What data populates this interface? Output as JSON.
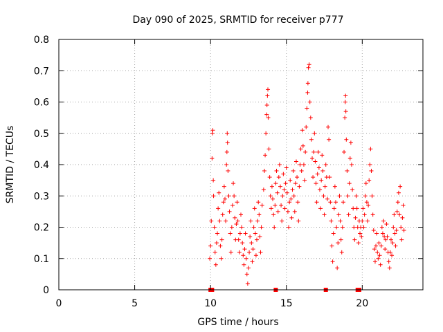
{
  "chart_data": {
    "type": "scatter",
    "title": "Day 090 of 2025, SRMTID for receiver p777",
    "xlabel": "GPS time / hours",
    "ylabel": "SRMTID / TECUs",
    "xlim": [
      0,
      24
    ],
    "ylim": [
      0,
      0.8
    ],
    "xticks": [
      0,
      5,
      10,
      15,
      20
    ],
    "xtick_labels": [
      "0",
      "5",
      "10",
      "15",
      "20"
    ],
    "yticks": [
      0,
      0.1,
      0.2,
      0.3,
      0.4,
      0.5,
      0.6,
      0.7,
      0.8
    ],
    "ytick_labels": [
      "0",
      "0.1",
      "0.2",
      "0.3",
      "0.4",
      "0.5",
      "0.6",
      "0.7",
      "0.8"
    ],
    "grid": true,
    "marker": "+",
    "color": "#ff0000",
    "series": [
      {
        "name": "SRMTID",
        "points": [
          [
            9.95,
            0.1
          ],
          [
            10.0,
            0.14
          ],
          [
            10.05,
            0.22
          ],
          [
            10.1,
            0.42
          ],
          [
            10.12,
            0.5
          ],
          [
            10.15,
            0.51
          ],
          [
            10.18,
            0.35
          ],
          [
            10.2,
            0.3
          ],
          [
            10.25,
            0.2
          ],
          [
            10.3,
            0.12
          ],
          [
            10.35,
            0.08
          ],
          [
            10.4,
            0.15
          ],
          [
            10.45,
            0.18
          ],
          [
            10.5,
            0.26
          ],
          [
            10.55,
            0.31
          ],
          [
            10.6,
            0.22
          ],
          [
            10.65,
            0.14
          ],
          [
            10.7,
            0.1
          ],
          [
            10.75,
            0.16
          ],
          [
            10.8,
            0.24
          ],
          [
            10.85,
            0.28
          ],
          [
            10.9,
            0.33
          ],
          [
            10.95,
            0.29
          ],
          [
            11.0,
            0.22
          ],
          [
            11.05,
            0.4
          ],
          [
            11.08,
            0.44
          ],
          [
            11.1,
            0.5
          ],
          [
            11.12,
            0.47
          ],
          [
            11.15,
            0.38
          ],
          [
            11.2,
            0.3
          ],
          [
            11.25,
            0.25
          ],
          [
            11.3,
            0.18
          ],
          [
            11.35,
            0.12
          ],
          [
            11.4,
            0.2
          ],
          [
            11.45,
            0.27
          ],
          [
            11.5,
            0.34
          ],
          [
            11.55,
            0.3
          ],
          [
            11.6,
            0.23
          ],
          [
            11.65,
            0.16
          ],
          [
            11.7,
            0.21
          ],
          [
            11.75,
            0.28
          ],
          [
            11.8,
            0.22
          ],
          [
            11.85,
            0.16
          ],
          [
            11.9,
            0.12
          ],
          [
            11.95,
            0.18
          ],
          [
            12.0,
            0.24
          ],
          [
            12.05,
            0.2
          ],
          [
            12.1,
            0.15
          ],
          [
            12.15,
            0.11
          ],
          [
            12.2,
            0.08
          ],
          [
            12.25,
            0.13
          ],
          [
            12.3,
            0.18
          ],
          [
            12.35,
            0.1
          ],
          [
            12.4,
            0.05
          ],
          [
            12.45,
            0.02
          ],
          [
            12.5,
            0.07
          ],
          [
            12.55,
            0.12
          ],
          [
            12.6,
            0.17
          ],
          [
            12.65,
            0.22
          ],
          [
            12.7,
            0.15
          ],
          [
            12.75,
            0.09
          ],
          [
            12.8,
            0.13
          ],
          [
            12.85,
            0.2
          ],
          [
            12.9,
            0.26
          ],
          [
            12.95,
            0.18
          ],
          [
            13.0,
            0.11
          ],
          [
            13.05,
            0.16
          ],
          [
            13.1,
            0.22
          ],
          [
            13.15,
            0.28
          ],
          [
            13.2,
            0.24
          ],
          [
            13.25,
            0.17
          ],
          [
            13.3,
            0.12
          ],
          [
            13.35,
            0.2
          ],
          [
            13.4,
            0.27
          ],
          [
            13.5,
            0.32
          ],
          [
            13.55,
            0.38
          ],
          [
            13.6,
            0.43
          ],
          [
            13.65,
            0.5
          ],
          [
            13.7,
            0.56
          ],
          [
            13.72,
            0.59
          ],
          [
            13.75,
            0.62
          ],
          [
            13.78,
            0.64
          ],
          [
            13.8,
            0.55
          ],
          [
            13.85,
            0.45
          ],
          [
            13.9,
            0.36
          ],
          [
            13.95,
            0.3
          ],
          [
            14.0,
            0.26
          ],
          [
            14.05,
            0.33
          ],
          [
            14.1,
            0.29
          ],
          [
            14.15,
            0.24
          ],
          [
            14.2,
            0.2
          ],
          [
            14.25,
            0.27
          ],
          [
            14.3,
            0.34
          ],
          [
            14.35,
            0.38
          ],
          [
            14.4,
            0.31
          ],
          [
            14.45,
            0.25
          ],
          [
            14.5,
            0.36
          ],
          [
            14.55,
            0.4
          ],
          [
            14.6,
            0.33
          ],
          [
            14.65,
            0.27
          ],
          [
            14.7,
            0.22
          ],
          [
            14.75,
            0.3
          ],
          [
            14.8,
            0.37
          ],
          [
            14.85,
            0.32
          ],
          [
            14.9,
            0.26
          ],
          [
            14.95,
            0.34
          ],
          [
            15.0,
            0.39
          ],
          [
            15.05,
            0.31
          ],
          [
            15.1,
            0.25
          ],
          [
            15.15,
            0.2
          ],
          [
            15.2,
            0.28
          ],
          [
            15.25,
            0.35
          ],
          [
            15.3,
            0.29
          ],
          [
            15.35,
            0.23
          ],
          [
            15.4,
            0.32
          ],
          [
            15.45,
            0.38
          ],
          [
            15.5,
            0.3
          ],
          [
            15.55,
            0.25
          ],
          [
            15.6,
            0.34
          ],
          [
            15.65,
            0.41
          ],
          [
            15.7,
            0.36
          ],
          [
            15.75,
            0.28
          ],
          [
            15.8,
            0.22
          ],
          [
            15.85,
            0.33
          ],
          [
            15.9,
            0.4
          ],
          [
            15.95,
            0.45
          ],
          [
            16.0,
            0.38
          ],
          [
            16.05,
            0.51
          ],
          [
            16.1,
            0.46
          ],
          [
            16.15,
            0.4
          ],
          [
            16.2,
            0.35
          ],
          [
            16.25,
            0.44
          ],
          [
            16.3,
            0.52
          ],
          [
            16.35,
            0.58
          ],
          [
            16.4,
            0.63
          ],
          [
            16.42,
            0.66
          ],
          [
            16.45,
            0.71
          ],
          [
            16.5,
            0.72
          ],
          [
            16.55,
            0.6
          ],
          [
            16.6,
            0.55
          ],
          [
            16.65,
            0.48
          ],
          [
            16.7,
            0.42
          ],
          [
            16.75,
            0.36
          ],
          [
            16.8,
            0.44
          ],
          [
            16.85,
            0.5
          ],
          [
            16.9,
            0.41
          ],
          [
            16.95,
            0.34
          ],
          [
            17.0,
            0.28
          ],
          [
            17.05,
            0.37
          ],
          [
            17.1,
            0.44
          ],
          [
            17.15,
            0.39
          ],
          [
            17.2,
            0.32
          ],
          [
            17.25,
            0.26
          ],
          [
            17.3,
            0.35
          ],
          [
            17.35,
            0.43
          ],
          [
            17.4,
            0.38
          ],
          [
            17.45,
            0.3
          ],
          [
            17.5,
            0.24
          ],
          [
            17.55,
            0.33
          ],
          [
            17.6,
            0.4
          ],
          [
            17.65,
            0.36
          ],
          [
            17.7,
            0.29
          ],
          [
            17.75,
            0.52
          ],
          [
            17.8,
            0.48
          ],
          [
            17.85,
            0.36
          ],
          [
            17.9,
            0.28
          ],
          [
            17.95,
            0.22
          ],
          [
            18.0,
            0.14
          ],
          [
            18.05,
            0.09
          ],
          [
            18.1,
            0.18
          ],
          [
            18.15,
            0.26
          ],
          [
            18.2,
            0.33
          ],
          [
            18.25,
            0.28
          ],
          [
            18.3,
            0.2
          ],
          [
            18.35,
            0.07
          ],
          [
            18.4,
            0.15
          ],
          [
            18.45,
            0.24
          ],
          [
            18.5,
            0.3
          ],
          [
            18.55,
            0.22
          ],
          [
            18.6,
            0.16
          ],
          [
            18.65,
            0.12
          ],
          [
            18.7,
            0.2
          ],
          [
            18.75,
            0.28
          ],
          [
            18.8,
            0.44
          ],
          [
            18.85,
            0.55
          ],
          [
            18.88,
            0.6
          ],
          [
            18.9,
            0.62
          ],
          [
            18.92,
            0.57
          ],
          [
            18.95,
            0.48
          ],
          [
            19.0,
            0.38
          ],
          [
            19.05,
            0.3
          ],
          [
            19.1,
            0.24
          ],
          [
            19.15,
            0.34
          ],
          [
            19.2,
            0.42
          ],
          [
            19.25,
            0.47
          ],
          [
            19.3,
            0.4
          ],
          [
            19.35,
            0.32
          ],
          [
            19.4,
            0.26
          ],
          [
            19.45,
            0.2
          ],
          [
            19.5,
            0.16
          ],
          [
            19.55,
            0.23
          ],
          [
            19.6,
            0.3
          ],
          [
            19.65,
            0.26
          ],
          [
            19.7,
            0.2
          ],
          [
            19.75,
            0.15
          ],
          [
            19.8,
            0.22
          ],
          [
            19.85,
            0.18
          ],
          [
            19.9,
            0.2
          ],
          [
            19.95,
            0.17
          ],
          [
            20.0,
            0.22
          ],
          [
            20.05,
            0.26
          ],
          [
            20.1,
            0.2
          ],
          [
            20.15,
            0.24
          ],
          [
            20.2,
            0.3
          ],
          [
            20.25,
            0.34
          ],
          [
            20.3,
            0.28
          ],
          [
            20.35,
            0.22
          ],
          [
            20.4,
            0.27
          ],
          [
            20.45,
            0.35
          ],
          [
            20.5,
            0.4
          ],
          [
            20.55,
            0.45
          ],
          [
            20.6,
            0.38
          ],
          [
            20.65,
            0.3
          ],
          [
            20.7,
            0.24
          ],
          [
            20.75,
            0.19
          ],
          [
            20.8,
            0.13
          ],
          [
            20.85,
            0.09
          ],
          [
            20.9,
            0.14
          ],
          [
            20.95,
            0.18
          ],
          [
            21.0,
            0.12
          ],
          [
            21.05,
            0.1
          ],
          [
            21.1,
            0.15
          ],
          [
            21.15,
            0.11
          ],
          [
            21.2,
            0.08
          ],
          [
            21.25,
            0.14
          ],
          [
            21.3,
            0.2
          ],
          [
            21.35,
            0.18
          ],
          [
            21.4,
            0.22
          ],
          [
            21.45,
            0.17
          ],
          [
            21.5,
            0.13
          ],
          [
            21.55,
            0.16
          ],
          [
            21.6,
            0.21
          ],
          [
            21.65,
            0.17
          ],
          [
            21.7,
            0.12
          ],
          [
            21.75,
            0.09
          ],
          [
            21.8,
            0.07
          ],
          [
            21.85,
            0.12
          ],
          [
            21.9,
            0.16
          ],
          [
            21.95,
            0.11
          ],
          [
            22.0,
            0.15
          ],
          [
            22.05,
            0.2
          ],
          [
            22.1,
            0.24
          ],
          [
            22.15,
            0.18
          ],
          [
            22.2,
            0.14
          ],
          [
            22.25,
            0.19
          ],
          [
            22.3,
            0.25
          ],
          [
            22.35,
            0.28
          ],
          [
            22.4,
            0.31
          ],
          [
            22.45,
            0.24
          ],
          [
            22.5,
            0.33
          ],
          [
            22.55,
            0.2
          ],
          [
            22.6,
            0.16
          ],
          [
            22.65,
            0.23
          ],
          [
            22.7,
            0.27
          ],
          [
            22.75,
            0.19
          ]
        ]
      }
    ],
    "baseline_markers": {
      "description": "red square markers on the x axis",
      "x": [
        10.0,
        10.1,
        14.3,
        17.6,
        19.7,
        19.8
      ]
    }
  }
}
